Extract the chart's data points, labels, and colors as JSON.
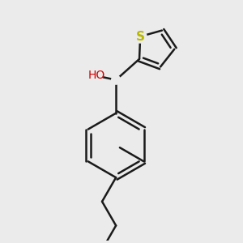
{
  "bg_color": "#EBEBEB",
  "bond_color": "#1a1a1a",
  "bond_width": 1.8,
  "S_color": "#b8b800",
  "O_color": "#cc0000",
  "font_size": 10,
  "figsize": [
    3.0,
    3.0
  ],
  "dpi": 100,
  "xlim": [
    -1.4,
    1.6
  ],
  "ylim": [
    -2.8,
    1.5
  ]
}
